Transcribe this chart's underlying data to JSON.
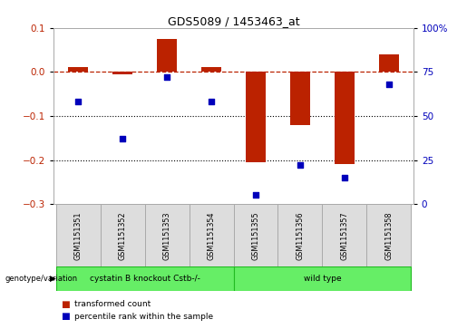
{
  "title": "GDS5089 / 1453463_at",
  "samples": [
    "GSM1151351",
    "GSM1151352",
    "GSM1151353",
    "GSM1151354",
    "GSM1151355",
    "GSM1151356",
    "GSM1151357",
    "GSM1151358"
  ],
  "red_values": [
    0.012,
    -0.005,
    0.075,
    0.012,
    -0.205,
    -0.12,
    -0.21,
    0.04
  ],
  "blue_values_raw": [
    58,
    37,
    72,
    58,
    5,
    22,
    15,
    68
  ],
  "group1_samples": 4,
  "group1_label": "cystatin B knockout Cstb-/-",
  "group2_label": "wild type",
  "group_color": "#66ee66",
  "group_label_left": "genotype/variation",
  "ylim_left": [
    -0.3,
    0.1
  ],
  "ylim_right": [
    0,
    100
  ],
  "yticks_left": [
    -0.3,
    -0.2,
    -0.1,
    0.0,
    0.1
  ],
  "yticks_right": [
    0,
    25,
    50,
    75,
    100
  ],
  "hline_y": 0.0,
  "dotted_lines": [
    -0.1,
    -0.2
  ],
  "red_color": "#bb2200",
  "blue_color": "#0000bb",
  "bar_width": 0.45,
  "legend_items": [
    "transformed count",
    "percentile rank within the sample"
  ],
  "legend_colors": [
    "#bb2200",
    "#0000bb"
  ],
  "bg_color": "#ffffff",
  "label_box_color": "#dddddd",
  "label_box_edge": "#aaaaaa",
  "group_edge_color": "#22bb22"
}
